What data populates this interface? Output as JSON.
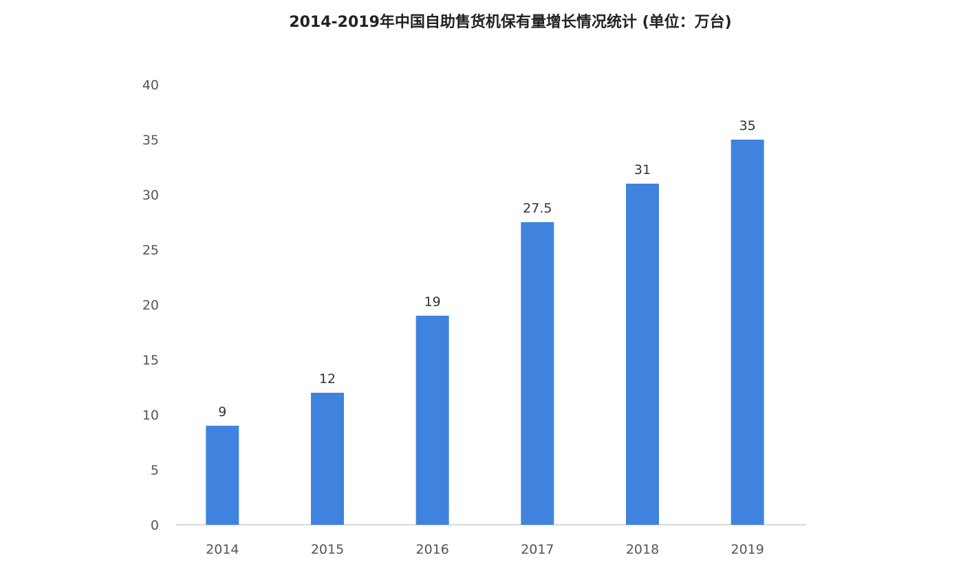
{
  "chart_data": {
    "type": "bar",
    "title": "2014-2019年中国自助售货机保有量增长情况统计 (单位：万台)",
    "categories": [
      "2014",
      "2015",
      "2016",
      "2017",
      "2018",
      "2019"
    ],
    "values": [
      9,
      12,
      19,
      27.5,
      31,
      35
    ],
    "data_labels": [
      "9",
      "12",
      "19",
      "27.5",
      "31",
      "35"
    ],
    "xlabel": "",
    "ylabel": "",
    "ylim": [
      0,
      40
    ],
    "yticks": [
      0,
      5,
      10,
      15,
      20,
      25,
      30,
      35,
      40
    ],
    "grid": false,
    "legend": "none",
    "bar_color": "#3f83df"
  }
}
